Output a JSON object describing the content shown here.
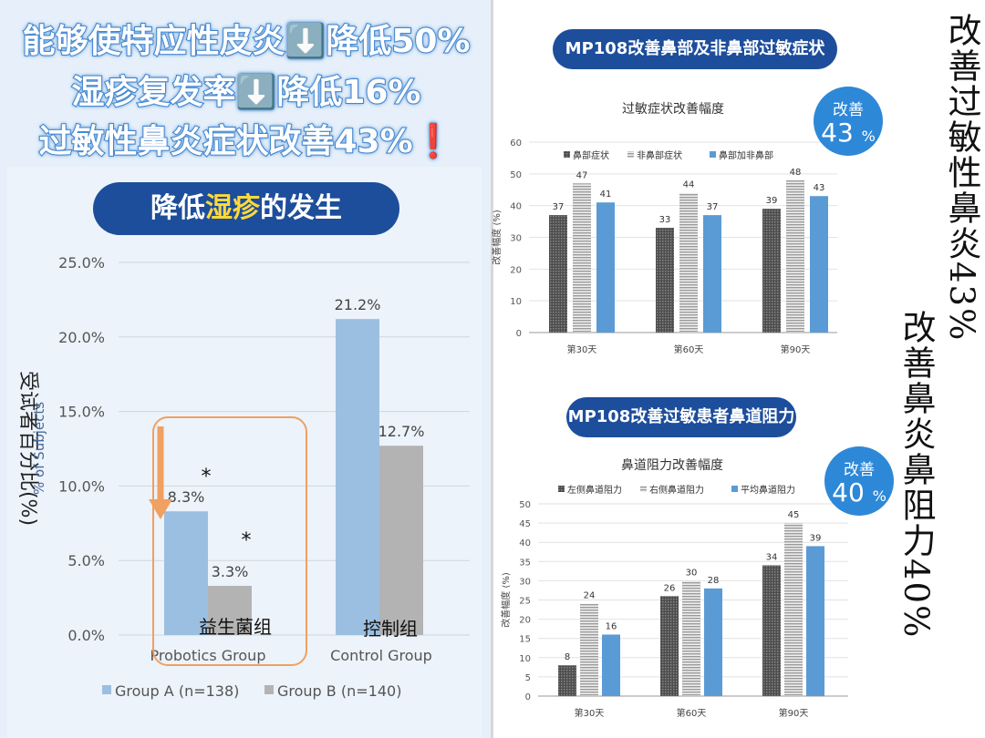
{
  "headlines": [
    "能够使特应性皮炎⬇️降低50%",
    "湿疹复发率⬇️降低16%",
    "过敏性鼻炎症状改善43%❗"
  ],
  "left_title": {
    "prefix": "降低",
    "highlight": "湿疹",
    "suffix": "的发生"
  },
  "right_titles": {
    "top": "MP108改善鼻部及非鼻部过敏症状",
    "bottom": "MP108改善过敏患者鼻道阻力"
  },
  "badges": [
    {
      "label": "改善",
      "value": "43",
      "unit": "%"
    },
    {
      "label": "改善",
      "value": "40",
      "unit": "%"
    }
  ],
  "vertical_text": {
    "col1": "改善过敏性鼻炎43%",
    "col2": "改善鼻炎鼻阻力40%"
  },
  "colors": {
    "blue_bar": "#9bbfe0",
    "gray_bar": "#b3b3b3",
    "navy": "#1d4e9b",
    "accent_blue": "#5b9bd5",
    "orange": "#f0a060"
  },
  "chart_data": [
    {
      "type": "bar",
      "title": "",
      "categories": [
        "Probotics Group",
        "Control Group"
      ],
      "category_cn": [
        "益生菌组",
        "控制组"
      ],
      "series": [
        {
          "name": "Group A (n=138)",
          "values": [
            8.3,
            21.2
          ],
          "labels": [
            "8.3%",
            "21.2%"
          ]
        },
        {
          "name": "Group B (n=140)",
          "values": [
            3.3,
            12.7
          ],
          "labels": [
            "3.3%",
            "12.7%"
          ]
        }
      ],
      "ylabel_cn": "受试者百分比(%)",
      "ylabel": "% of Subjects",
      "ylim": [
        0,
        25
      ],
      "yticks": [
        "0.0%",
        "5.0%",
        "10.0%",
        "15.0%",
        "20.0%",
        "25.0%"
      ],
      "significance_marks": [
        "*",
        "*"
      ],
      "legend": "bottom"
    },
    {
      "type": "bar",
      "title": "过敏症状改善幅度",
      "categories": [
        "第30天",
        "第60天",
        "第90天"
      ],
      "series": [
        {
          "name": "鼻部症状",
          "values": [
            37,
            33,
            39
          ]
        },
        {
          "name": "非鼻部症状",
          "values": [
            47,
            44,
            48
          ]
        },
        {
          "name": "鼻部加非鼻部",
          "values": [
            41,
            37,
            43
          ]
        }
      ],
      "ylabel": "改善幅度 (%)",
      "ylim": [
        0,
        60
      ],
      "yticks": [
        0,
        10,
        20,
        30,
        40,
        50,
        60
      ],
      "legend": "top"
    },
    {
      "type": "bar",
      "title": "鼻道阻力改善幅度",
      "categories": [
        "第30天",
        "第60天",
        "第90天"
      ],
      "series": [
        {
          "name": "左侧鼻道阻力",
          "values": [
            8,
            26,
            34
          ]
        },
        {
          "name": "右侧鼻道阻力",
          "values": [
            24,
            30,
            45
          ]
        },
        {
          "name": "平均鼻道阻力",
          "values": [
            16,
            28,
            39
          ]
        }
      ],
      "ylabel": "改善幅度 (%)",
      "ylim": [
        0,
        50
      ],
      "yticks": [
        0,
        5,
        10,
        15,
        20,
        25,
        30,
        35,
        40,
        45,
        50
      ],
      "legend": "top"
    }
  ]
}
